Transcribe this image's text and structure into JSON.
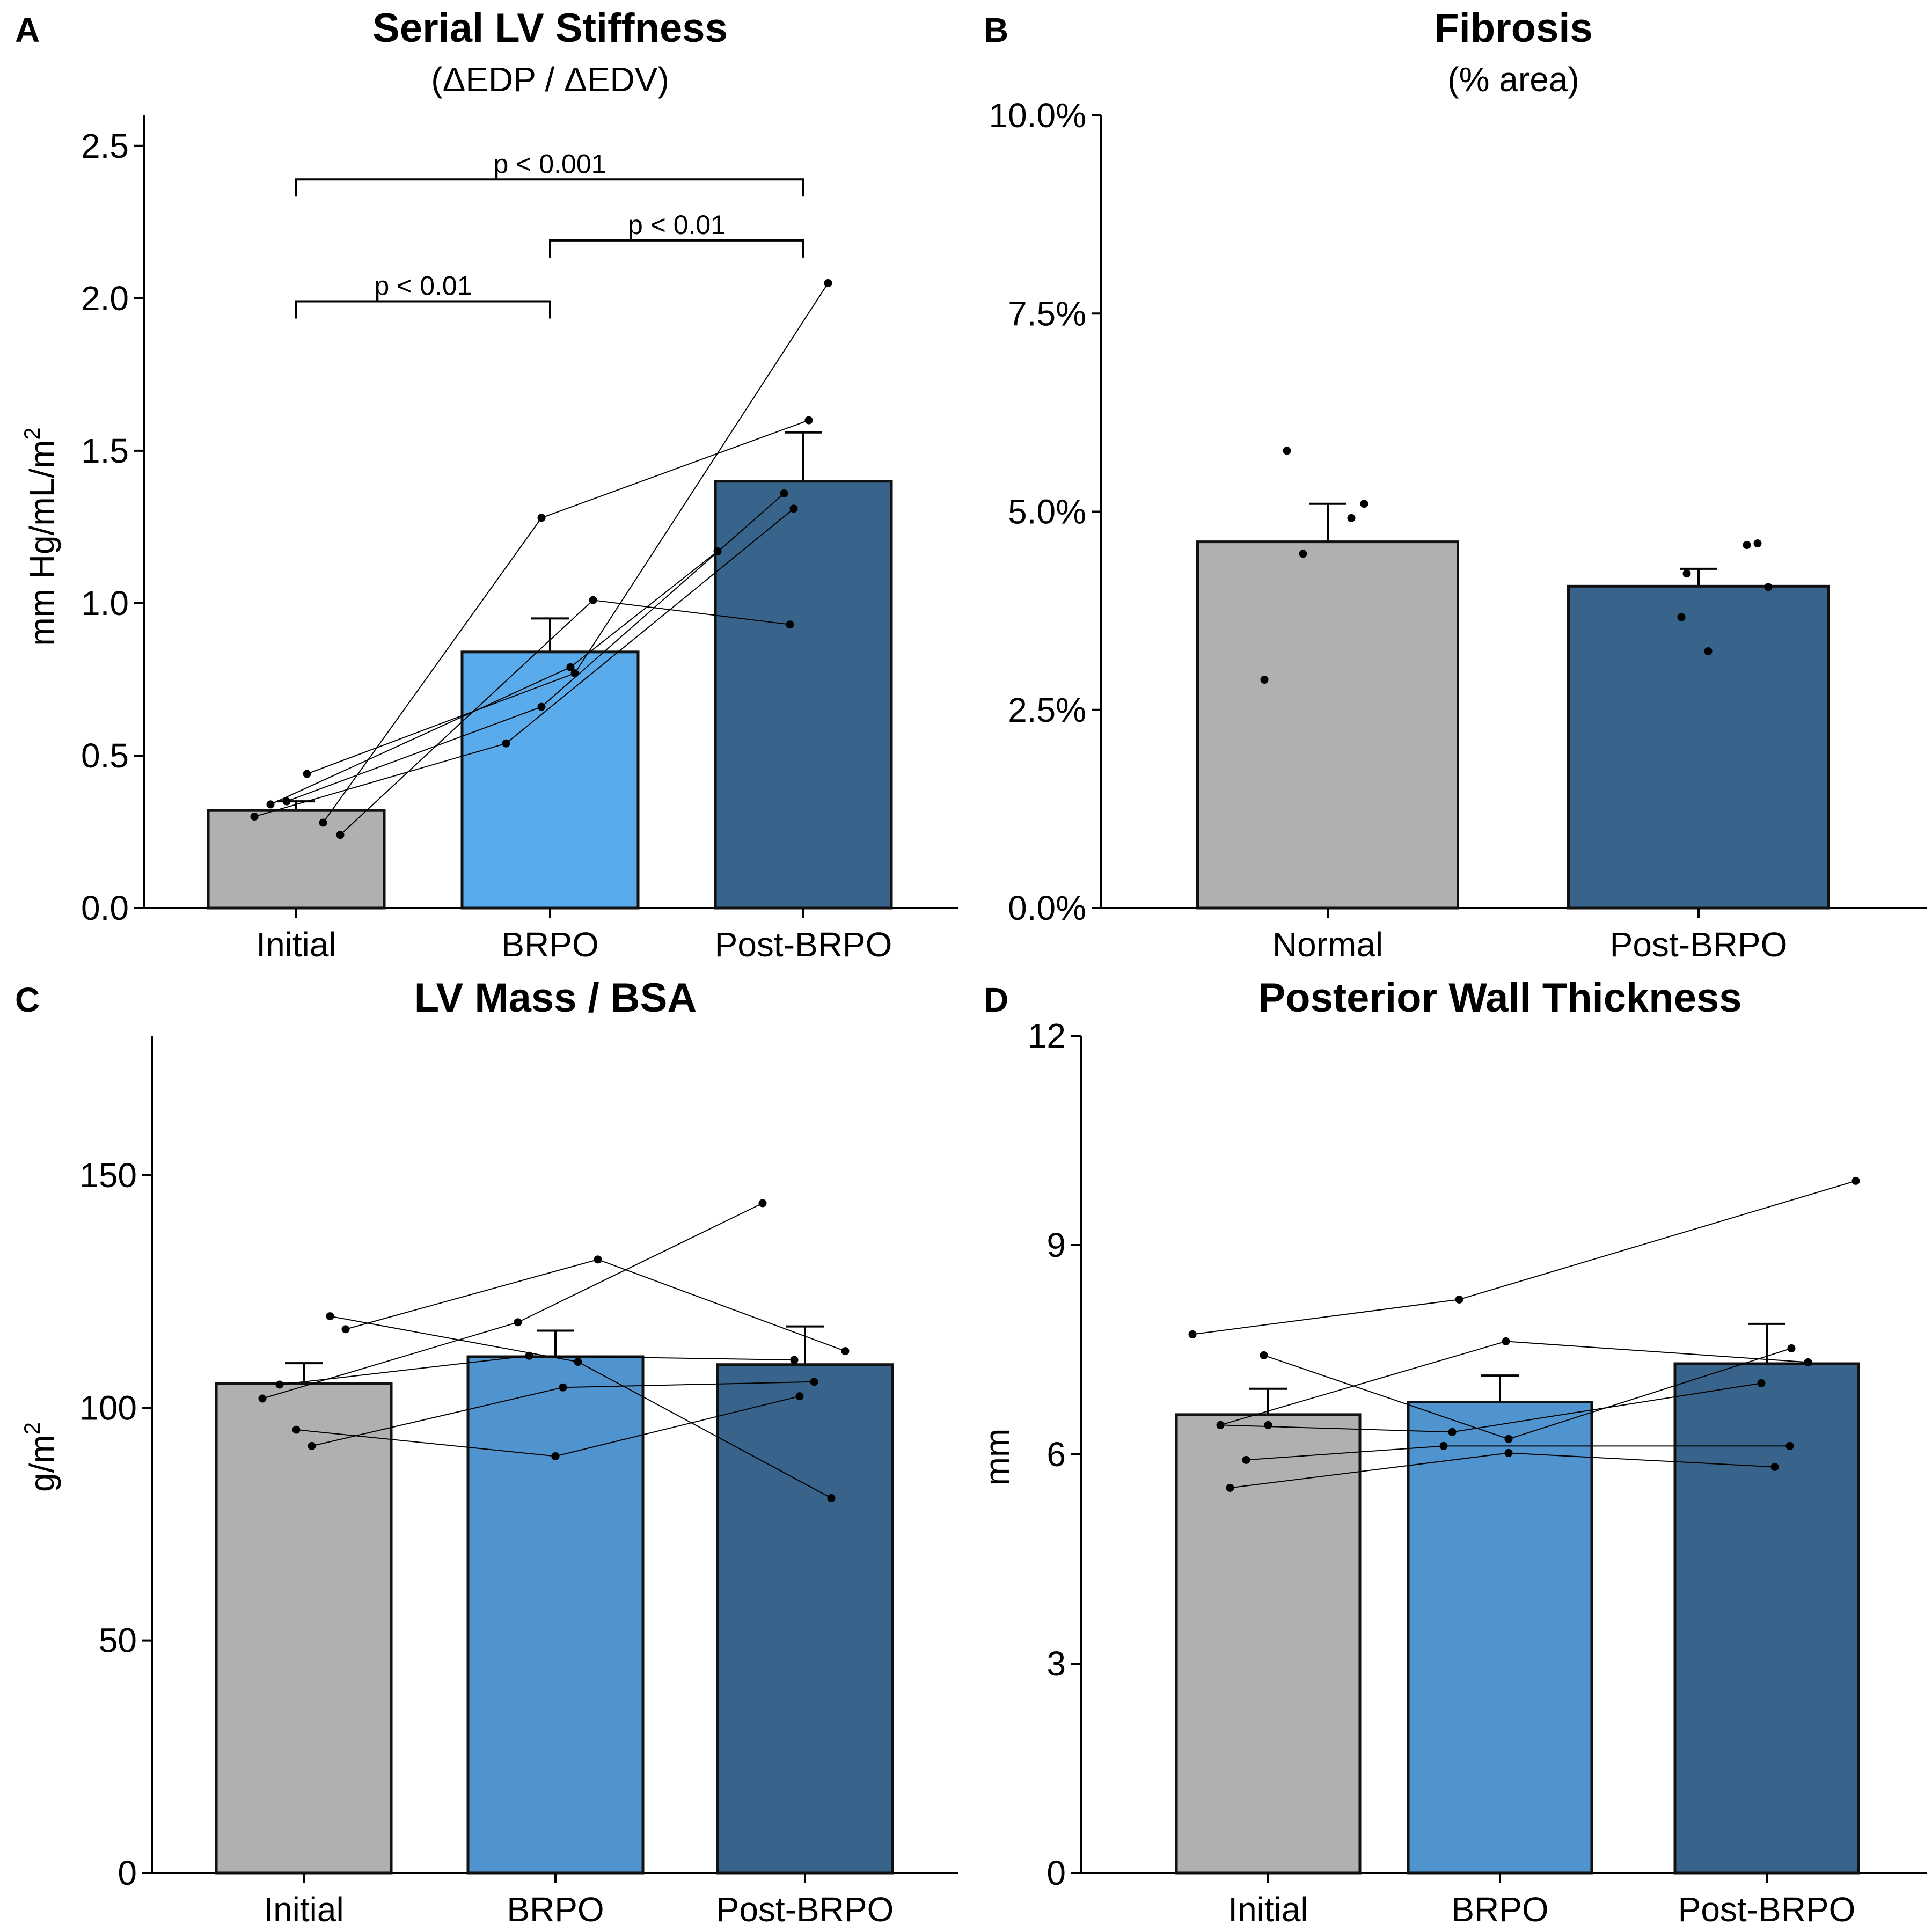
{
  "chart_data": [
    {
      "panel": "A",
      "type": "bar",
      "title": "Serial LV Stiffness",
      "subtitle": "(ΔEDP / ΔEDV)",
      "ylabel": "mm Hg/mL/m",
      "ylabel_superscript": "2",
      "ylim": [
        0,
        2.6
      ],
      "yticks": [
        "0.0",
        "0.5",
        "1.0",
        "1.5",
        "2.0",
        "2.5"
      ],
      "categories": [
        "Initial",
        "BRPO",
        "Post-BRPO"
      ],
      "values": [
        0.32,
        0.84,
        1.4
      ],
      "errors": [
        0.03,
        0.11,
        0.16
      ],
      "colors": [
        "#b0b0b0",
        "#5aabeb",
        "#38648c"
      ],
      "points": [
        [
          0.35,
          0.34,
          0.3,
          0.44,
          0.28,
          0.24
        ],
        [
          1.28,
          1.01,
          0.79,
          0.77,
          0.66,
          0.54
        ],
        [
          2.05,
          1.6,
          1.36,
          1.31,
          1.17,
          0.93
        ]
      ],
      "pairs": [
        [
          0.35,
          0.66,
          1.36
        ],
        [
          0.34,
          0.79,
          1.17
        ],
        [
          0.3,
          0.54,
          1.31
        ],
        [
          0.44,
          0.77,
          2.05
        ],
        [
          0.28,
          1.28,
          1.6
        ],
        [
          0.24,
          1.01,
          0.93
        ]
      ],
      "significance": [
        {
          "label": "p < 0.001",
          "from": "Initial",
          "to": "Post-BRPO",
          "y": 2.39
        },
        {
          "label": "p < 0.01",
          "from": "BRPO",
          "to": "Post-BRPO",
          "y": 2.19
        },
        {
          "label": "p < 0.01",
          "from": "Initial",
          "to": "BRPO",
          "y": 1.99
        }
      ]
    },
    {
      "panel": "B",
      "type": "bar",
      "title": "Fibrosis",
      "subtitle": "(% area)",
      "ylabel": "",
      "ylim": [
        0,
        10
      ],
      "yticks": [
        "0.0%",
        "2.5%",
        "5.0%",
        "7.5%",
        "10.0%"
      ],
      "categories": [
        "Normal",
        "Post-BRPO"
      ],
      "values": [
        4.62,
        4.06
      ],
      "errors": [
        0.48,
        0.22
      ],
      "colors": [
        "#b0b0b0",
        "#38648c"
      ],
      "points": [
        [
          5.77,
          5.1,
          4.92,
          4.47,
          2.88
        ],
        [
          4.6,
          4.58,
          4.22,
          4.05,
          3.67,
          3.24
        ]
      ]
    },
    {
      "panel": "C",
      "type": "bar",
      "title": "LV Mass / BSA",
      "subtitle": "",
      "ylabel": "g/m",
      "ylabel_superscript": "2",
      "ylim": [
        0,
        180
      ],
      "yticks": [
        "0",
        "50",
        "100",
        "150"
      ],
      "categories": [
        "Initial",
        "BRPO",
        "Post-BRPO"
      ],
      "values": [
        105.2,
        111.0,
        109.3
      ],
      "errors": [
        4.4,
        5.6,
        8.2
      ],
      "colors": [
        "#b0b0b0",
        "#4f93cf",
        "#38648c"
      ],
      "points": [
        [
          119.7,
          116.9,
          105.0,
          102.0,
          95.3,
          91.8
        ],
        [
          131.9,
          118.4,
          111.2,
          109.9,
          104.4,
          89.6
        ],
        [
          144.0,
          112.2,
          110.3,
          105.6,
          102.5,
          80.6
        ]
      ],
      "pairs": [
        [
          102.0,
          118.4,
          144.0
        ],
        [
          116.9,
          131.9,
          112.2
        ],
        [
          119.7,
          109.9,
          80.6
        ],
        [
          105.0,
          111.2,
          110.3
        ],
        [
          91.8,
          104.4,
          105.6
        ],
        [
          95.3,
          89.6,
          102.5
        ]
      ]
    },
    {
      "panel": "D",
      "type": "bar",
      "title": "Posterior Wall Thickness",
      "subtitle": "",
      "ylabel": "mm",
      "ylim": [
        0,
        12
      ],
      "yticks": [
        "0",
        "3",
        "6",
        "9",
        "12"
      ],
      "categories": [
        "Initial",
        "BRPO",
        "Post-BRPO"
      ],
      "values": [
        6.57,
        6.75,
        7.3
      ],
      "errors": [
        0.37,
        0.38,
        0.57
      ],
      "colors": [
        "#b0b0b0",
        "#4f93cf",
        "#38648c"
      ],
      "points": [
        [
          7.72,
          7.42,
          6.42,
          6.42,
          5.92,
          5.52
        ],
        [
          8.22,
          7.62,
          6.32,
          6.22,
          6.12,
          6.02
        ],
        [
          9.92,
          7.52,
          7.32,
          7.02,
          6.12,
          5.82
        ]
      ],
      "pairs": [
        [
          7.72,
          8.22,
          9.92
        ],
        [
          7.42,
          6.22,
          7.52
        ],
        [
          6.42,
          6.32,
          7.02
        ],
        [
          6.42,
          7.62,
          7.32
        ],
        [
          5.92,
          6.12,
          6.12
        ],
        [
          5.52,
          6.02,
          5.82
        ]
      ]
    }
  ]
}
